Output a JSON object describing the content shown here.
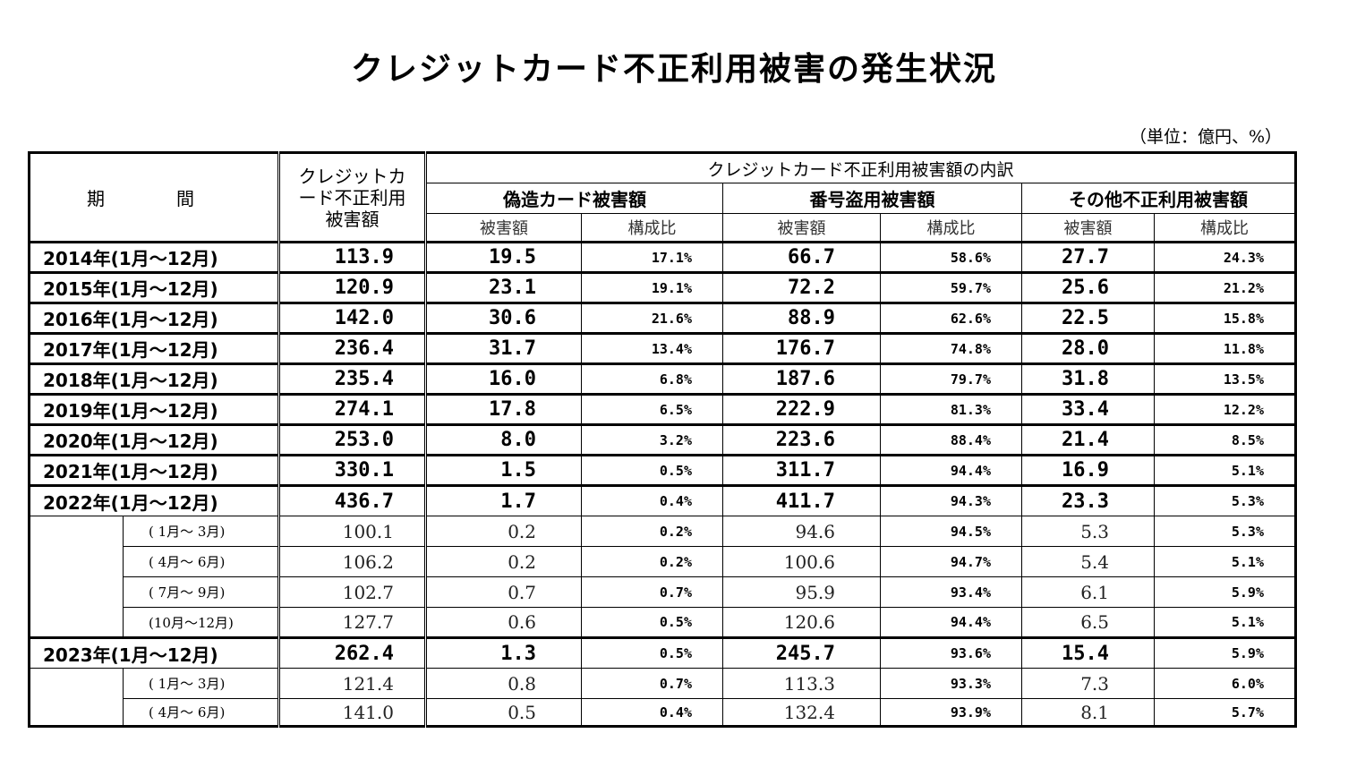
{
  "title": "クレジットカード不正利用被害の発生状況",
  "unit": "（単位：億円、%）",
  "headers": {
    "period": "期　間",
    "total": "クレジットカード不正利用被害額",
    "breakdown": "クレジットカード不正利用被害額の内訳",
    "cat1": "偽造カード被害額",
    "cat2": "番号盗用被害額",
    "cat3": "その他不正利用被害額",
    "amount": "被害額",
    "ratio": "構成比"
  },
  "rows": [
    {
      "period": "2014年(1月～12月)",
      "total": "113.9",
      "a1": "19.5",
      "p1": "17.1%",
      "a2": "66.7",
      "p2": "58.6%",
      "a3": "27.7",
      "p3": "24.3%"
    },
    {
      "period": "2015年(1月～12月)",
      "total": "120.9",
      "a1": "23.1",
      "p1": "19.1%",
      "a2": "72.2",
      "p2": "59.7%",
      "a3": "25.6",
      "p3": "21.2%"
    },
    {
      "period": "2016年(1月～12月)",
      "total": "142.0",
      "a1": "30.6",
      "p1": "21.6%",
      "a2": "88.9",
      "p2": "62.6%",
      "a3": "22.5",
      "p3": "15.8%"
    },
    {
      "period": "2017年(1月～12月)",
      "total": "236.4",
      "a1": "31.7",
      "p1": "13.4%",
      "a2": "176.7",
      "p2": "74.8%",
      "a3": "28.0",
      "p3": "11.8%"
    },
    {
      "period": "2018年(1月～12月)",
      "total": "235.4",
      "a1": "16.0",
      "p1": "6.8%",
      "a2": "187.6",
      "p2": "79.7%",
      "a3": "31.8",
      "p3": "13.5%"
    },
    {
      "period": "2019年(1月～12月)",
      "total": "274.1",
      "a1": "17.8",
      "p1": "6.5%",
      "a2": "222.9",
      "p2": "81.3%",
      "a3": "33.4",
      "p3": "12.2%"
    },
    {
      "period": "2020年(1月～12月)",
      "total": "253.0",
      "a1": "8.0",
      "p1": "3.2%",
      "a2": "223.6",
      "p2": "88.4%",
      "a3": "21.4",
      "p3": "8.5%"
    },
    {
      "period": "2021年(1月～12月)",
      "total": "330.1",
      "a1": "1.5",
      "p1": "0.5%",
      "a2": "311.7",
      "p2": "94.4%",
      "a3": "16.9",
      "p3": "5.1%"
    },
    {
      "period": "2022年(1月～12月)",
      "total": "436.7",
      "a1": "1.7",
      "p1": "0.4%",
      "a2": "411.7",
      "p2": "94.3%",
      "a3": "23.3",
      "p3": "5.3%"
    },
    {
      "period": "( 1月～ 3月)",
      "total": "100.1",
      "a1": "0.2",
      "p1": "0.2%",
      "a2": "94.6",
      "p2": "94.5%",
      "a3": "5.3",
      "p3": "5.3%"
    },
    {
      "period": "( 4月～ 6月)",
      "total": "106.2",
      "a1": "0.2",
      "p1": "0.2%",
      "a2": "100.6",
      "p2": "94.7%",
      "a3": "5.4",
      "p3": "5.1%"
    },
    {
      "period": "( 7月～ 9月)",
      "total": "102.7",
      "a1": "0.7",
      "p1": "0.7%",
      "a2": "95.9",
      "p2": "93.4%",
      "a3": "6.1",
      "p3": "5.9%"
    },
    {
      "period": "(10月～12月)",
      "total": "127.7",
      "a1": "0.6",
      "p1": "0.5%",
      "a2": "120.6",
      "p2": "94.4%",
      "a3": "6.5",
      "p3": "5.1%"
    },
    {
      "period": "2023年(1月～12月)",
      "total": "262.4",
      "a1": "1.3",
      "p1": "0.5%",
      "a2": "245.7",
      "p2": "93.6%",
      "a3": "15.4",
      "p3": "5.9%"
    },
    {
      "period": "( 1月～ 3月)",
      "total": "121.4",
      "a1": "0.8",
      "p1": "0.7%",
      "a2": "113.3",
      "p2": "93.3%",
      "a3": "7.3",
      "p3": "6.0%"
    },
    {
      "period": "( 4月～ 6月)",
      "total": "141.0",
      "a1": "0.5",
      "p1": "0.4%",
      "a2": "132.4",
      "p2": "93.9%",
      "a3": "8.1",
      "p3": "5.7%"
    }
  ]
}
